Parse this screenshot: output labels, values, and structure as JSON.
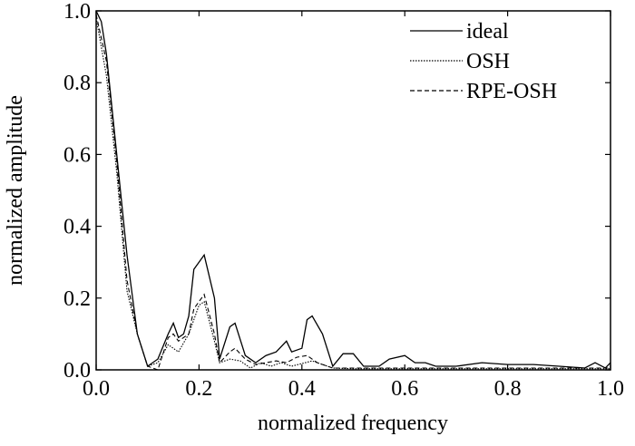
{
  "chart_data": {
    "type": "line",
    "title": "",
    "xlabel": "normalized frequency",
    "ylabel": "normalized amplitude",
    "xlim": [
      0.0,
      1.0
    ],
    "ylim": [
      0.0,
      1.0
    ],
    "xticks": [
      "0.0",
      "0.2",
      "0.4",
      "0.6",
      "0.8",
      "1.0"
    ],
    "yticks": [
      "0.0",
      "0.2",
      "0.4",
      "0.6",
      "0.8",
      "1.0"
    ],
    "grid": false,
    "legend_position": "top-right",
    "series": [
      {
        "name": "ideal",
        "style": "solid",
        "x": [
          0,
          0.01,
          0.02,
          0.04,
          0.06,
          0.08,
          0.1,
          0.12,
          0.14,
          0.15,
          0.16,
          0.17,
          0.18,
          0.19,
          0.21,
          0.23,
          0.24,
          0.26,
          0.27,
          0.29,
          0.31,
          0.33,
          0.35,
          0.37,
          0.38,
          0.4,
          0.41,
          0.42,
          0.44,
          0.46,
          0.48,
          0.5,
          0.52,
          0.55,
          0.57,
          0.6,
          0.62,
          0.64,
          0.66,
          0.7,
          0.75,
          0.8,
          0.85,
          0.9,
          0.95,
          0.97,
          0.99,
          1.0
        ],
        "y": [
          1.0,
          0.97,
          0.88,
          0.6,
          0.32,
          0.1,
          0.01,
          0.03,
          0.1,
          0.13,
          0.09,
          0.1,
          0.15,
          0.28,
          0.32,
          0.2,
          0.03,
          0.12,
          0.13,
          0.04,
          0.02,
          0.04,
          0.05,
          0.08,
          0.05,
          0.06,
          0.14,
          0.15,
          0.1,
          0.01,
          0.045,
          0.045,
          0.01,
          0.01,
          0.03,
          0.04,
          0.02,
          0.02,
          0.01,
          0.01,
          0.02,
          0.015,
          0.015,
          0.01,
          0.005,
          0.02,
          0.005,
          0.02
        ]
      },
      {
        "name": "OSH",
        "style": "dotted",
        "x": [
          0,
          0.02,
          0.04,
          0.06,
          0.08,
          0.1,
          0.12,
          0.14,
          0.16,
          0.18,
          0.2,
          0.21,
          0.23,
          0.24,
          0.26,
          0.28,
          0.3,
          0.32,
          0.34,
          0.36,
          0.38,
          0.42,
          0.44,
          0.46,
          0.5,
          0.6,
          0.7,
          0.8,
          0.9,
          1.0
        ],
        "y": [
          0.98,
          0.82,
          0.55,
          0.22,
          0.1,
          0.01,
          0.02,
          0.07,
          0.05,
          0.1,
          0.18,
          0.19,
          0.08,
          0.02,
          0.03,
          0.025,
          0.005,
          0.02,
          0.01,
          0.02,
          0.01,
          0.025,
          0.015,
          0.005,
          0.003,
          0.003,
          0.003,
          0.003,
          0.003,
          0.003
        ]
      },
      {
        "name": "RPE-OSH",
        "style": "dashed",
        "x": [
          0,
          0.02,
          0.04,
          0.06,
          0.08,
          0.1,
          0.12,
          0.14,
          0.15,
          0.16,
          0.18,
          0.19,
          0.21,
          0.23,
          0.24,
          0.26,
          0.27,
          0.29,
          0.31,
          0.33,
          0.35,
          0.37,
          0.39,
          0.41,
          0.43,
          0.46,
          0.5,
          0.6,
          0.7,
          0.8,
          0.9,
          1.0
        ],
        "y": [
          0.99,
          0.86,
          0.58,
          0.25,
          0.1,
          0.01,
          0.0,
          0.09,
          0.1,
          0.08,
          0.1,
          0.17,
          0.21,
          0.1,
          0.02,
          0.05,
          0.06,
          0.03,
          0.015,
          0.02,
          0.025,
          0.02,
          0.035,
          0.04,
          0.02,
          0.005,
          0.005,
          0.005,
          0.005,
          0.005,
          0.005,
          0.005
        ]
      }
    ]
  }
}
